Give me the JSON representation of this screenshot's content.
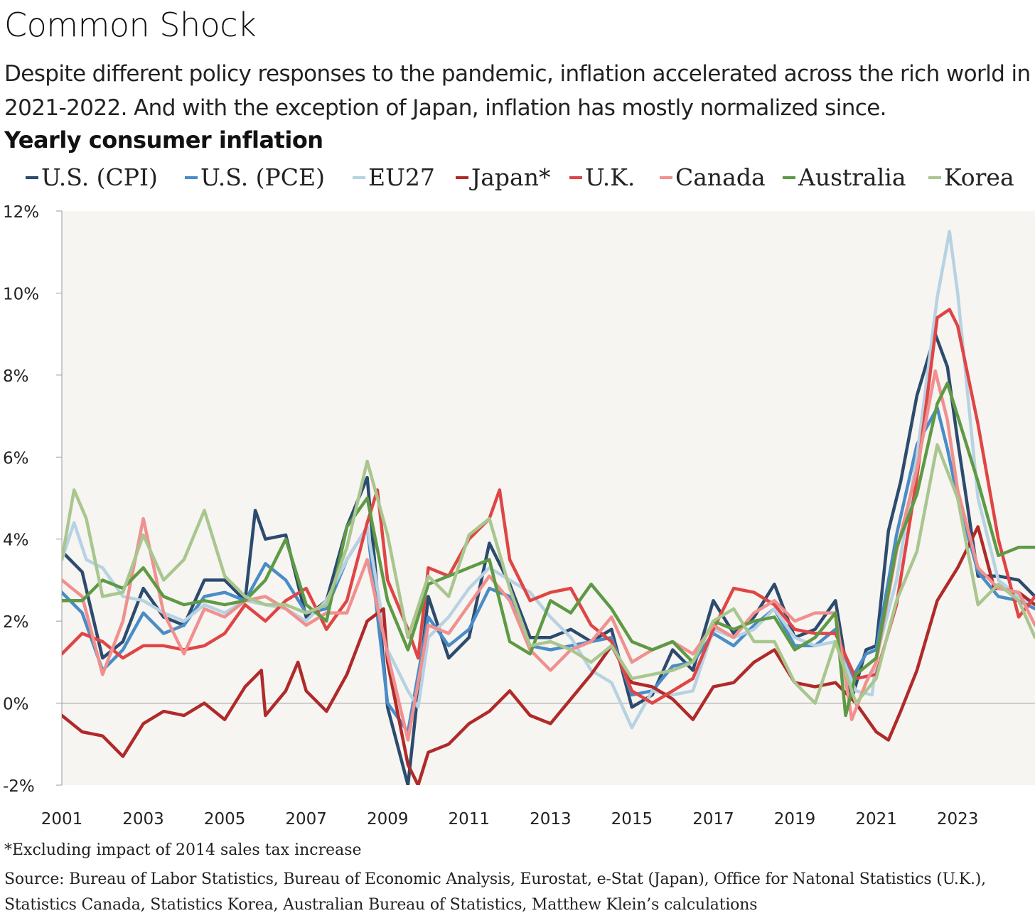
{
  "header": {
    "title": "Common Shock",
    "subtitle": "Despite different policy responses to the pandemic, inflation accelerated across the rich world in 2021-2022. And with the exception of Japan, inflation has mostly normalized since.",
    "chart_label": "Yearly consumer inflation"
  },
  "footer": {
    "note": "*Excluding impact of 2014 sales tax increase",
    "source": "Source: Bureau of Labor Statistics, Bureau of Economic Analysis, Eurostat, e-Stat (Japan), Office for Natonal Statistics (U.K.), Statistics Canada, Statistics Korea, Australian Bureau of Statistics, Matthew Klein’s calculations"
  },
  "chart_data": {
    "type": "line",
    "title": "Yearly consumer inflation",
    "ylim": [
      -2,
      12
    ],
    "xlim": [
      2001.0,
      2024.9
    ],
    "y_ticks": [
      -2,
      0,
      2,
      4,
      6,
      8,
      10,
      12
    ],
    "y_tick_labels": [
      "-2%",
      "0%",
      "2%",
      "4%",
      "6%",
      "8%",
      "10%",
      "12%"
    ],
    "x_ticks": [
      2001,
      2003,
      2005,
      2007,
      2009,
      2011,
      2013,
      2015,
      2017,
      2019,
      2021,
      2023
    ],
    "x_tick_labels": [
      "2001",
      "2003",
      "2005",
      "2007",
      "2009",
      "2011",
      "2013",
      "2015",
      "2017",
      "2019",
      "2021",
      "2023"
    ],
    "grid": false,
    "legend_position": "top",
    "background": "#f6f5f1",
    "series": [
      {
        "name": "U.S. (CPI)",
        "color": "#2c4b6e",
        "x": [
          2001.0,
          2001.5,
          2002.0,
          2002.5,
          2003.0,
          2003.5,
          2004.0,
          2004.5,
          2005.0,
          2005.5,
          2005.75,
          2006.0,
          2006.5,
          2007.0,
          2007.5,
          2008.0,
          2008.5,
          2009.0,
          2009.5,
          2010.0,
          2010.5,
          2011.0,
          2011.5,
          2012.0,
          2012.5,
          2013.0,
          2013.5,
          2014.0,
          2014.5,
          2015.0,
          2015.5,
          2016.0,
          2016.5,
          2017.0,
          2017.5,
          2018.0,
          2018.5,
          2019.0,
          2019.5,
          2020.0,
          2020.4,
          2020.75,
          2021.0,
          2021.3,
          2021.6,
          2022.0,
          2022.45,
          2022.75,
          2023.0,
          2023.5,
          2024.0,
          2024.5,
          2024.9
        ],
        "y": [
          3.7,
          3.2,
          1.1,
          1.5,
          2.8,
          2.1,
          1.9,
          3.0,
          3.0,
          2.5,
          4.7,
          4.0,
          4.1,
          2.1,
          2.5,
          4.3,
          5.5,
          -0.1,
          -2.0,
          2.6,
          1.1,
          1.6,
          3.9,
          2.9,
          1.6,
          1.6,
          1.8,
          1.5,
          1.8,
          -0.1,
          0.2,
          1.3,
          0.8,
          2.5,
          1.7,
          2.1,
          2.9,
          1.6,
          1.8,
          2.5,
          0.1,
          1.3,
          1.4,
          4.2,
          5.4,
          7.5,
          9.0,
          8.2,
          6.4,
          3.1,
          3.1,
          3.0,
          2.6
        ]
      },
      {
        "name": "U.S. (PCE)",
        "color": "#4a8cc7",
        "x": [
          2001.0,
          2001.5,
          2002.0,
          2002.5,
          2003.0,
          2003.5,
          2004.0,
          2004.5,
          2005.0,
          2005.5,
          2006.0,
          2006.5,
          2007.0,
          2007.5,
          2008.0,
          2008.5,
          2009.0,
          2009.5,
          2010.0,
          2010.5,
          2011.0,
          2011.5,
          2012.0,
          2012.5,
          2013.0,
          2013.5,
          2014.0,
          2014.5,
          2015.0,
          2015.5,
          2016.0,
          2016.5,
          2017.0,
          2017.5,
          2018.0,
          2018.5,
          2019.0,
          2019.5,
          2020.0,
          2020.4,
          2020.75,
          2021.0,
          2021.5,
          2022.0,
          2022.5,
          2022.75,
          2023.0,
          2023.5,
          2024.0,
          2024.5,
          2024.9
        ],
        "y": [
          2.7,
          2.2,
          0.8,
          1.3,
          2.2,
          1.7,
          1.9,
          2.6,
          2.7,
          2.5,
          3.4,
          3.0,
          2.2,
          2.3,
          3.5,
          4.3,
          0.0,
          -0.7,
          2.1,
          1.4,
          1.8,
          2.8,
          2.6,
          1.4,
          1.3,
          1.4,
          1.5,
          1.6,
          0.2,
          0.3,
          0.9,
          1.0,
          1.7,
          1.4,
          1.9,
          2.3,
          1.4,
          1.4,
          1.8,
          0.6,
          1.2,
          1.3,
          4.1,
          6.3,
          7.2,
          6.2,
          5.0,
          3.2,
          2.6,
          2.5,
          2.3
        ]
      },
      {
        "name": "EU27",
        "color": "#b7d2e3",
        "x": [
          2001.0,
          2001.3,
          2001.6,
          2002.0,
          2002.5,
          2003.0,
          2003.5,
          2004.0,
          2004.5,
          2005.0,
          2005.5,
          2006.0,
          2006.5,
          2007.0,
          2007.5,
          2008.0,
          2008.5,
          2009.0,
          2009.5,
          2009.75,
          2010.0,
          2010.5,
          2011.0,
          2011.5,
          2012.0,
          2012.5,
          2013.0,
          2013.5,
          2014.0,
          2014.5,
          2015.0,
          2015.5,
          2016.0,
          2016.5,
          2017.0,
          2017.5,
          2018.0,
          2018.5,
          2019.0,
          2019.5,
          2020.0,
          2020.5,
          2020.9,
          2021.0,
          2021.5,
          2022.0,
          2022.5,
          2022.8,
          2023.0,
          2023.5,
          2024.0,
          2024.5,
          2024.9
        ],
        "y": [
          3.5,
          4.4,
          3.5,
          3.3,
          2.6,
          2.5,
          2.2,
          2.0,
          2.4,
          2.2,
          2.5,
          2.4,
          2.3,
          2.0,
          2.5,
          3.5,
          4.3,
          1.3,
          0.3,
          -0.1,
          1.6,
          2.1,
          2.8,
          3.3,
          3.0,
          2.7,
          2.1,
          1.6,
          0.8,
          0.5,
          -0.6,
          0.3,
          0.2,
          0.3,
          1.8,
          1.6,
          1.8,
          2.3,
          1.6,
          1.4,
          1.5,
          0.3,
          0.2,
          1.1,
          3.0,
          6.0,
          9.9,
          11.5,
          10.0,
          5.0,
          3.0,
          2.6,
          2.4
        ]
      },
      {
        "name": "Japan*",
        "color": "#b02a2a",
        "x": [
          2001.0,
          2001.5,
          2002.0,
          2002.5,
          2003.0,
          2003.5,
          2004.0,
          2004.5,
          2005.0,
          2005.5,
          2005.9,
          2006.0,
          2006.5,
          2006.8,
          2007.0,
          2007.5,
          2008.0,
          2008.5,
          2008.9,
          2009.0,
          2009.5,
          2009.75,
          2010.0,
          2010.5,
          2011.0,
          2011.5,
          2012.0,
          2012.5,
          2013.0,
          2013.5,
          2014.0,
          2014.5,
          2015.0,
          2015.5,
          2016.0,
          2016.5,
          2017.0,
          2017.5,
          2018.0,
          2018.5,
          2019.0,
          2019.5,
          2020.0,
          2020.5,
          2021.0,
          2021.3,
          2021.6,
          2022.0,
          2022.5,
          2023.0,
          2023.5,
          2023.9,
          2024.0,
          2024.5,
          2024.9
        ],
        "y": [
          -0.3,
          -0.7,
          -0.8,
          -1.3,
          -0.5,
          -0.2,
          -0.3,
          0.0,
          -0.4,
          0.4,
          0.8,
          -0.3,
          0.3,
          1.0,
          0.3,
          -0.2,
          0.7,
          2.0,
          2.3,
          1.0,
          -1.5,
          -2.0,
          -1.2,
          -1.0,
          -0.5,
          -0.2,
          0.3,
          -0.3,
          -0.5,
          0.1,
          0.7,
          1.4,
          0.5,
          0.4,
          0.1,
          -0.4,
          0.4,
          0.5,
          1.0,
          1.3,
          0.5,
          0.4,
          0.5,
          0.0,
          -0.7,
          -0.9,
          -0.2,
          0.8,
          2.5,
          3.3,
          4.3,
          2.8,
          2.8,
          2.7,
          2.4
        ]
      },
      {
        "name": "U.K.",
        "color": "#e04545",
        "x": [
          2001.0,
          2001.5,
          2002.0,
          2002.5,
          2003.0,
          2003.5,
          2004.0,
          2004.5,
          2005.0,
          2005.5,
          2006.0,
          2006.5,
          2007.0,
          2007.5,
          2008.0,
          2008.5,
          2008.75,
          2009.0,
          2009.5,
          2009.75,
          2010.0,
          2010.5,
          2011.0,
          2011.5,
          2011.75,
          2012.0,
          2012.5,
          2013.0,
          2013.5,
          2014.0,
          2014.5,
          2015.0,
          2015.5,
          2016.0,
          2016.5,
          2017.0,
          2017.5,
          2018.0,
          2018.5,
          2019.0,
          2019.5,
          2020.0,
          2020.5,
          2021.0,
          2021.5,
          2022.0,
          2022.5,
          2022.8,
          2023.0,
          2023.5,
          2024.0,
          2024.5,
          2024.9
        ],
        "y": [
          1.2,
          1.7,
          1.5,
          1.1,
          1.4,
          1.4,
          1.3,
          1.4,
          1.7,
          2.4,
          2.0,
          2.5,
          2.8,
          1.8,
          2.5,
          4.4,
          5.2,
          3.0,
          1.8,
          1.1,
          3.3,
          3.1,
          4.0,
          4.5,
          5.2,
          3.5,
          2.5,
          2.7,
          2.8,
          1.9,
          1.5,
          0.3,
          0.0,
          0.3,
          0.6,
          1.8,
          2.8,
          2.7,
          2.4,
          1.8,
          1.7,
          1.7,
          0.6,
          0.7,
          2.4,
          5.5,
          9.4,
          9.6,
          9.2,
          6.8,
          4.0,
          2.1,
          2.6
        ]
      },
      {
        "name": "Canada",
        "color": "#f0908f",
        "x": [
          2001.0,
          2001.5,
          2002.0,
          2002.5,
          2003.0,
          2003.5,
          2004.0,
          2004.5,
          2005.0,
          2005.5,
          2006.0,
          2006.5,
          2007.0,
          2007.5,
          2008.0,
          2008.5,
          2009.0,
          2009.5,
          2010.0,
          2010.5,
          2011.0,
          2011.5,
          2012.0,
          2012.5,
          2013.0,
          2013.5,
          2014.0,
          2014.5,
          2015.0,
          2015.5,
          2016.0,
          2016.5,
          2017.0,
          2017.5,
          2018.0,
          2018.5,
          2019.0,
          2019.5,
          2020.0,
          2020.4,
          2020.75,
          2021.0,
          2021.5,
          2022.0,
          2022.45,
          2022.75,
          2023.0,
          2023.5,
          2024.0,
          2024.5,
          2024.9
        ],
        "y": [
          3.0,
          2.6,
          0.7,
          2.0,
          4.5,
          2.2,
          1.2,
          2.3,
          2.1,
          2.5,
          2.6,
          2.3,
          1.9,
          2.2,
          2.2,
          3.5,
          1.2,
          -0.9,
          1.9,
          1.7,
          2.4,
          3.1,
          2.5,
          1.3,
          0.8,
          1.3,
          1.5,
          2.1,
          1.0,
          1.3,
          1.5,
          1.2,
          1.9,
          1.6,
          2.2,
          2.5,
          2.0,
          2.2,
          2.2,
          -0.4,
          0.5,
          1.0,
          3.7,
          5.7,
          8.1,
          6.9,
          5.2,
          3.3,
          2.8,
          2.7,
          1.9
        ]
      },
      {
        "name": "Australia",
        "color": "#5e9a45",
        "x": [
          2001.0,
          2001.5,
          2002.0,
          2002.5,
          2003.0,
          2003.5,
          2004.0,
          2004.5,
          2005.0,
          2005.5,
          2006.0,
          2006.5,
          2007.0,
          2007.5,
          2008.0,
          2008.5,
          2009.0,
          2009.5,
          2010.0,
          2010.5,
          2011.0,
          2011.5,
          2012.0,
          2012.5,
          2013.0,
          2013.5,
          2014.0,
          2014.5,
          2015.0,
          2015.5,
          2016.0,
          2016.5,
          2017.0,
          2017.5,
          2018.0,
          2018.5,
          2019.0,
          2019.5,
          2020.0,
          2020.25,
          2020.5,
          2021.0,
          2021.5,
          2022.0,
          2022.5,
          2022.75,
          2023.0,
          2023.5,
          2024.0,
          2024.5,
          2024.9
        ],
        "y": [
          2.5,
          2.5,
          3.0,
          2.8,
          3.3,
          2.6,
          2.4,
          2.5,
          2.4,
          2.5,
          3.0,
          4.0,
          2.4,
          2.0,
          4.3,
          5.0,
          2.5,
          1.3,
          2.9,
          3.1,
          3.3,
          3.5,
          1.5,
          1.2,
          2.5,
          2.2,
          2.9,
          2.3,
          1.5,
          1.3,
          1.5,
          1.0,
          2.0,
          1.8,
          2.0,
          2.1,
          1.3,
          1.6,
          2.2,
          -0.3,
          0.7,
          1.1,
          3.8,
          5.1,
          7.3,
          7.8,
          7.0,
          5.4,
          3.6,
          3.8,
          3.8
        ]
      },
      {
        "name": "Korea",
        "color": "#a9c68f",
        "x": [
          2001.0,
          2001.3,
          2001.6,
          2002.0,
          2002.5,
          2003.0,
          2003.5,
          2004.0,
          2004.5,
          2005.0,
          2005.5,
          2006.0,
          2006.5,
          2007.0,
          2007.5,
          2008.0,
          2008.5,
          2009.0,
          2009.5,
          2010.0,
          2010.5,
          2011.0,
          2011.5,
          2012.0,
          2012.5,
          2013.0,
          2013.5,
          2014.0,
          2014.5,
          2015.0,
          2015.5,
          2016.0,
          2016.5,
          2017.0,
          2017.5,
          2018.0,
          2018.5,
          2019.0,
          2019.5,
          2020.0,
          2020.5,
          2021.0,
          2021.5,
          2022.0,
          2022.5,
          2023.0,
          2023.5,
          2024.0,
          2024.5,
          2024.9
        ],
        "y": [
          3.5,
          5.2,
          4.5,
          2.6,
          2.7,
          4.1,
          3.0,
          3.5,
          4.7,
          3.1,
          2.6,
          2.4,
          2.4,
          2.2,
          2.4,
          3.8,
          5.9,
          4.1,
          1.6,
          3.1,
          2.6,
          4.1,
          4.5,
          2.8,
          1.4,
          1.5,
          1.3,
          1.0,
          1.4,
          0.6,
          0.7,
          0.8,
          1.0,
          2.0,
          2.3,
          1.5,
          1.5,
          0.5,
          0.0,
          1.5,
          0.0,
          0.6,
          2.5,
          3.7,
          6.3,
          5.0,
          2.4,
          2.9,
          2.5,
          1.6
        ]
      }
    ]
  }
}
